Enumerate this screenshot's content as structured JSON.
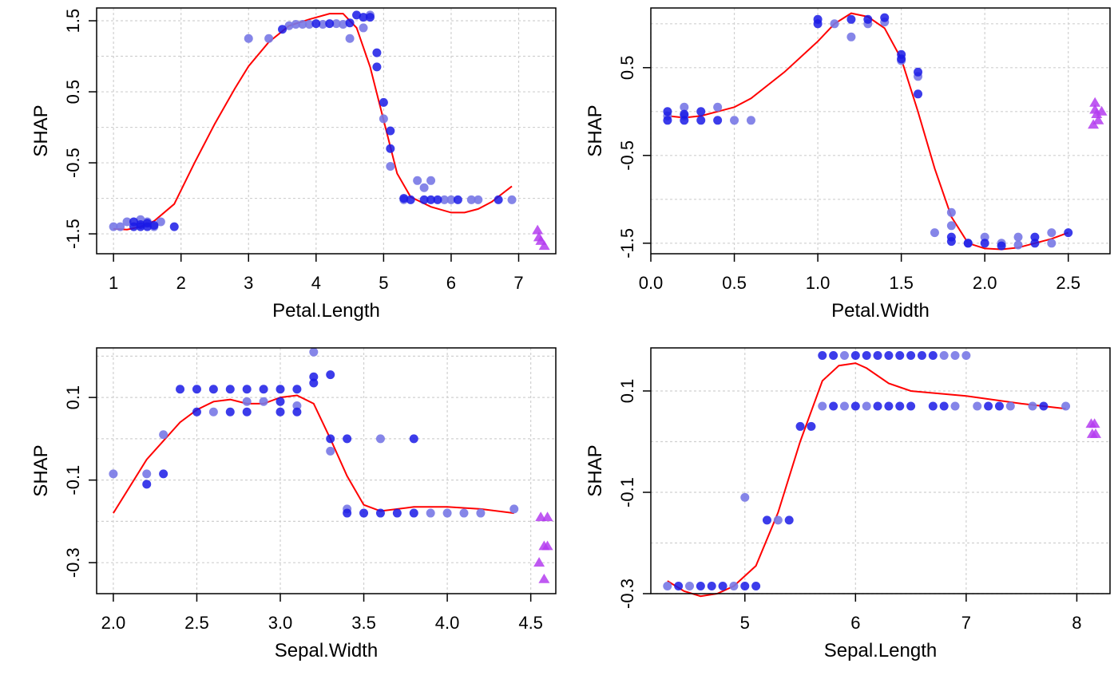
{
  "colors": {
    "point": "#1a1ae6",
    "point_light": "#7878e6",
    "triangle": "#b43cf0",
    "smooth": "#ff0000",
    "grid": "#d0d0d0",
    "frame": "#000000"
  },
  "chart_data": [
    {
      "type": "scatter",
      "xlabel": "Petal.Length",
      "ylabel": "SHAP",
      "xlim": [
        0.75,
        7.55
      ],
      "ylim": [
        -1.78,
        1.68
      ],
      "xticks": [
        1,
        2,
        3,
        4,
        5,
        6,
        7
      ],
      "xtick_labels": [
        "1",
        "2",
        "3",
        "4",
        "5",
        "6",
        "7"
      ],
      "yticks": [
        -1.5,
        -0.5,
        0.5,
        1.5
      ],
      "ytick_labels": [
        "-1.5",
        "-0.5",
        "0.5",
        "1.5"
      ],
      "grid": true,
      "points_dark": [
        [
          1.3,
          -1.33
        ],
        [
          1.4,
          -1.37
        ],
        [
          1.5,
          -1.35
        ],
        [
          1.4,
          -1.4
        ],
        [
          1.6,
          -1.38
        ],
        [
          1.5,
          -1.4
        ],
        [
          1.3,
          -1.4
        ],
        [
          1.9,
          -1.4
        ],
        [
          3.5,
          1.38
        ],
        [
          4.0,
          1.46
        ],
        [
          4.2,
          1.46
        ],
        [
          4.5,
          1.47
        ],
        [
          4.6,
          1.58
        ],
        [
          4.7,
          1.55
        ],
        [
          4.8,
          1.55
        ],
        [
          4.9,
          1.05
        ],
        [
          4.9,
          0.85
        ],
        [
          5.0,
          0.35
        ],
        [
          5.1,
          -0.05
        ],
        [
          5.1,
          -0.3
        ],
        [
          5.3,
          -1.0
        ],
        [
          5.4,
          -1.02
        ],
        [
          5.6,
          -1.02
        ],
        [
          5.7,
          -1.02
        ],
        [
          5.8,
          -1.02
        ],
        [
          6.1,
          -1.02
        ],
        [
          6.7,
          -1.02
        ]
      ],
      "points_light": [
        [
          1.0,
          -1.4
        ],
        [
          1.1,
          -1.4
        ],
        [
          1.2,
          -1.33
        ],
        [
          1.7,
          -1.33
        ],
        [
          1.6,
          -1.4
        ],
        [
          1.5,
          -1.33
        ],
        [
          1.4,
          -1.3
        ],
        [
          3.0,
          1.25
        ],
        [
          3.3,
          1.25
        ],
        [
          3.6,
          1.43
        ],
        [
          3.7,
          1.45
        ],
        [
          3.8,
          1.45
        ],
        [
          3.9,
          1.45
        ],
        [
          4.1,
          1.45
        ],
        [
          4.3,
          1.46
        ],
        [
          4.4,
          1.45
        ],
        [
          4.5,
          1.25
        ],
        [
          4.7,
          1.4
        ],
        [
          4.8,
          1.58
        ],
        [
          5.0,
          0.12
        ],
        [
          5.1,
          -0.55
        ],
        [
          5.3,
          -1.02
        ],
        [
          5.5,
          -0.75
        ],
        [
          5.6,
          -0.85
        ],
        [
          5.7,
          -0.75
        ],
        [
          5.9,
          -1.02
        ],
        [
          6.0,
          -1.02
        ],
        [
          6.3,
          -1.02
        ],
        [
          6.4,
          -1.02
        ],
        [
          6.9,
          -1.02
        ]
      ],
      "triangles": [
        [
          7.28,
          -1.45
        ],
        [
          7.3,
          -1.55
        ],
        [
          7.33,
          -1.6
        ],
        [
          7.38,
          -1.67
        ]
      ],
      "smooth": [
        [
          1.0,
          -1.43
        ],
        [
          1.2,
          -1.44
        ],
        [
          1.4,
          -1.4
        ],
        [
          1.6,
          -1.32
        ],
        [
          1.9,
          -1.08
        ],
        [
          2.2,
          -0.5
        ],
        [
          2.5,
          0.05
        ],
        [
          2.8,
          0.55
        ],
        [
          3.0,
          0.86
        ],
        [
          3.3,
          1.2
        ],
        [
          3.6,
          1.43
        ],
        [
          3.9,
          1.52
        ],
        [
          4.2,
          1.6
        ],
        [
          4.4,
          1.6
        ],
        [
          4.6,
          1.4
        ],
        [
          4.8,
          0.85
        ],
        [
          5.0,
          0.1
        ],
        [
          5.2,
          -0.65
        ],
        [
          5.4,
          -0.98
        ],
        [
          5.7,
          -1.12
        ],
        [
          6.0,
          -1.2
        ],
        [
          6.2,
          -1.2
        ],
        [
          6.4,
          -1.15
        ],
        [
          6.6,
          -1.05
        ],
        [
          6.9,
          -0.83
        ]
      ]
    },
    {
      "type": "scatter",
      "xlabel": "Petal.Width",
      "ylabel": "SHAP",
      "xlim": [
        0.0,
        2.75
      ],
      "ylim": [
        -1.62,
        1.18
      ],
      "xticks": [
        0.0,
        0.5,
        1.0,
        1.5,
        2.0,
        2.5
      ],
      "xtick_labels": [
        "0.0",
        "0.5",
        "1.0",
        "1.5",
        "2.0",
        "2.5"
      ],
      "yticks": [
        -1.5,
        -0.5,
        0.5
      ],
      "ytick_labels": [
        "-1.5",
        "-0.5",
        "0.5"
      ],
      "grid": true,
      "points_dark": [
        [
          0.1,
          0.0
        ],
        [
          0.1,
          -0.1
        ],
        [
          0.2,
          -0.1
        ],
        [
          0.2,
          -0.03
        ],
        [
          0.3,
          -0.1
        ],
        [
          0.4,
          -0.1
        ],
        [
          0.3,
          0.0
        ],
        [
          1.0,
          1.05
        ],
        [
          1.0,
          1.0
        ],
        [
          1.2,
          1.05
        ],
        [
          1.3,
          1.05
        ],
        [
          1.4,
          1.07
        ],
        [
          1.5,
          0.65
        ],
        [
          1.5,
          0.6
        ],
        [
          1.6,
          0.45
        ],
        [
          1.6,
          0.2
        ],
        [
          1.8,
          -1.43
        ],
        [
          1.8,
          -1.48
        ],
        [
          1.9,
          -1.5
        ],
        [
          2.0,
          -1.5
        ],
        [
          2.1,
          -1.53
        ],
        [
          2.3,
          -1.5
        ],
        [
          2.3,
          -1.43
        ],
        [
          2.5,
          -1.38
        ]
      ],
      "points_light": [
        [
          0.1,
          -0.05
        ],
        [
          0.2,
          0.05
        ],
        [
          0.2,
          -0.05
        ],
        [
          0.4,
          0.05
        ],
        [
          0.5,
          -0.1
        ],
        [
          0.6,
          -0.1
        ],
        [
          1.1,
          1.0
        ],
        [
          1.2,
          0.85
        ],
        [
          1.3,
          1.0
        ],
        [
          1.4,
          1.02
        ],
        [
          1.5,
          0.58
        ],
        [
          1.6,
          0.4
        ],
        [
          1.7,
          -1.38
        ],
        [
          1.8,
          -1.3
        ],
        [
          1.8,
          -1.15
        ],
        [
          1.9,
          -1.5
        ],
        [
          2.0,
          -1.43
        ],
        [
          2.1,
          -1.5
        ],
        [
          2.2,
          -1.43
        ],
        [
          2.2,
          -1.52
        ],
        [
          2.4,
          -1.38
        ],
        [
          2.4,
          -1.5
        ]
      ],
      "triangles": [
        [
          2.66,
          0.1
        ],
        [
          2.66,
          0.02
        ],
        [
          2.67,
          -0.03
        ],
        [
          2.68,
          -0.1
        ],
        [
          2.7,
          0.0
        ],
        [
          2.65,
          -0.15
        ]
      ],
      "smooth": [
        [
          0.1,
          -0.05
        ],
        [
          0.2,
          -0.07
        ],
        [
          0.3,
          -0.05
        ],
        [
          0.4,
          0.0
        ],
        [
          0.5,
          0.05
        ],
        [
          0.6,
          0.15
        ],
        [
          0.8,
          0.45
        ],
        [
          1.0,
          0.8
        ],
        [
          1.1,
          1.0
        ],
        [
          1.2,
          1.12
        ],
        [
          1.3,
          1.08
        ],
        [
          1.4,
          0.95
        ],
        [
          1.5,
          0.6
        ],
        [
          1.6,
          0.0
        ],
        [
          1.7,
          -0.65
        ],
        [
          1.8,
          -1.2
        ],
        [
          1.9,
          -1.5
        ],
        [
          2.0,
          -1.56
        ],
        [
          2.1,
          -1.57
        ],
        [
          2.2,
          -1.55
        ],
        [
          2.3,
          -1.5
        ],
        [
          2.4,
          -1.45
        ],
        [
          2.5,
          -1.38
        ]
      ]
    },
    {
      "type": "scatter",
      "xlabel": "Sepal.Width",
      "ylabel": "SHAP",
      "xlim": [
        1.9,
        4.65
      ],
      "ylim": [
        -0.375,
        0.22
      ],
      "xticks": [
        2.0,
        2.5,
        3.0,
        3.5,
        4.0,
        4.5
      ],
      "xtick_labels": [
        "2.0",
        "2.5",
        "3.0",
        "3.5",
        "4.0",
        "4.5"
      ],
      "yticks": [
        -0.3,
        -0.1,
        0.1
      ],
      "ytick_labels": [
        "-0.3",
        "-0.1",
        "0.1"
      ],
      "grid": true,
      "points_dark": [
        [
          2.2,
          -0.11
        ],
        [
          2.3,
          -0.085
        ],
        [
          2.4,
          0.12
        ],
        [
          2.5,
          0.12
        ],
        [
          2.6,
          0.12
        ],
        [
          2.7,
          0.12
        ],
        [
          2.8,
          0.12
        ],
        [
          2.9,
          0.12
        ],
        [
          3.0,
          0.12
        ],
        [
          3.1,
          0.12
        ],
        [
          2.5,
          0.065
        ],
        [
          2.7,
          0.065
        ],
        [
          2.8,
          0.065
        ],
        [
          3.0,
          0.065
        ],
        [
          3.1,
          0.065
        ],
        [
          3.0,
          0.09
        ],
        [
          3.2,
          0.15
        ],
        [
          3.2,
          0.135
        ],
        [
          3.3,
          0.155
        ],
        [
          3.3,
          0.0
        ],
        [
          3.4,
          0.0
        ],
        [
          3.4,
          -0.18
        ],
        [
          3.5,
          -0.18
        ],
        [
          3.6,
          -0.18
        ],
        [
          3.7,
          -0.18
        ],
        [
          3.8,
          -0.18
        ],
        [
          3.8,
          0.0
        ]
      ],
      "points_light": [
        [
          2.0,
          -0.085
        ],
        [
          2.2,
          -0.085
        ],
        [
          2.3,
          0.01
        ],
        [
          2.6,
          0.065
        ],
        [
          2.8,
          0.09
        ],
        [
          2.9,
          0.09
        ],
        [
          3.1,
          0.08
        ],
        [
          3.2,
          0.21
        ],
        [
          3.3,
          -0.03
        ],
        [
          3.4,
          -0.17
        ],
        [
          3.6,
          0.0
        ],
        [
          3.9,
          -0.18
        ],
        [
          4.0,
          -0.18
        ],
        [
          4.1,
          -0.18
        ],
        [
          4.2,
          -0.18
        ],
        [
          4.4,
          -0.17
        ]
      ],
      "triangles": [
        [
          4.56,
          -0.19
        ],
        [
          4.6,
          -0.19
        ],
        [
          4.58,
          -0.26
        ],
        [
          4.6,
          -0.26
        ],
        [
          4.55,
          -0.3
        ],
        [
          4.58,
          -0.34
        ]
      ],
      "smooth": [
        [
          2.0,
          -0.18
        ],
        [
          2.2,
          -0.05
        ],
        [
          2.4,
          0.04
        ],
        [
          2.5,
          0.07
        ],
        [
          2.6,
          0.09
        ],
        [
          2.7,
          0.095
        ],
        [
          2.8,
          0.085
        ],
        [
          2.9,
          0.085
        ],
        [
          3.0,
          0.1
        ],
        [
          3.1,
          0.105
        ],
        [
          3.2,
          0.085
        ],
        [
          3.3,
          0.0
        ],
        [
          3.4,
          -0.09
        ],
        [
          3.5,
          -0.16
        ],
        [
          3.6,
          -0.175
        ],
        [
          3.8,
          -0.165
        ],
        [
          4.0,
          -0.165
        ],
        [
          4.2,
          -0.17
        ],
        [
          4.4,
          -0.18
        ]
      ]
    },
    {
      "type": "scatter",
      "xlabel": "Sepal.Length",
      "ylabel": "SHAP",
      "xlim": [
        4.15,
        8.3
      ],
      "ylim": [
        -0.3,
        0.185
      ],
      "xticks": [
        5,
        6,
        7,
        8
      ],
      "xtick_labels": [
        "5",
        "6",
        "7",
        "8"
      ],
      "yticks": [
        -0.3,
        -0.1,
        0.1
      ],
      "ytick_labels": [
        "-0.3",
        "-0.1",
        "0.1"
      ],
      "grid": true,
      "points_dark": [
        [
          4.4,
          -0.285
        ],
        [
          4.6,
          -0.285
        ],
        [
          4.7,
          -0.285
        ],
        [
          4.8,
          -0.285
        ],
        [
          5.0,
          -0.285
        ],
        [
          5.1,
          -0.285
        ],
        [
          5.2,
          -0.155
        ],
        [
          5.4,
          -0.155
        ],
        [
          5.5,
          0.03
        ],
        [
          5.6,
          0.03
        ],
        [
          5.7,
          0.17
        ],
        [
          5.8,
          0.17
        ],
        [
          6.0,
          0.17
        ],
        [
          6.1,
          0.17
        ],
        [
          6.2,
          0.17
        ],
        [
          6.3,
          0.17
        ],
        [
          6.4,
          0.17
        ],
        [
          6.5,
          0.17
        ],
        [
          6.6,
          0.17
        ],
        [
          6.7,
          0.17
        ],
        [
          5.8,
          0.07
        ],
        [
          6.0,
          0.07
        ],
        [
          6.2,
          0.07
        ],
        [
          6.3,
          0.07
        ],
        [
          6.4,
          0.07
        ],
        [
          6.5,
          0.07
        ],
        [
          6.7,
          0.07
        ],
        [
          6.8,
          0.07
        ],
        [
          7.2,
          0.07
        ],
        [
          7.3,
          0.07
        ],
        [
          7.7,
          0.07
        ]
      ],
      "points_light": [
        [
          4.3,
          -0.285
        ],
        [
          4.5,
          -0.285
        ],
        [
          4.9,
          -0.285
        ],
        [
          5.0,
          -0.11
        ],
        [
          5.3,
          -0.155
        ],
        [
          5.9,
          0.17
        ],
        [
          6.8,
          0.17
        ],
        [
          6.9,
          0.17
        ],
        [
          7.0,
          0.17
        ],
        [
          5.7,
          0.07
        ],
        [
          5.9,
          0.07
        ],
        [
          6.1,
          0.07
        ],
        [
          6.9,
          0.07
        ],
        [
          7.1,
          0.07
        ],
        [
          7.4,
          0.07
        ],
        [
          7.6,
          0.07
        ],
        [
          7.9,
          0.07
        ]
      ],
      "triangles": [
        [
          8.13,
          0.035
        ],
        [
          8.16,
          0.035
        ],
        [
          8.14,
          0.015
        ],
        [
          8.17,
          0.015
        ]
      ],
      "smooth": [
        [
          4.3,
          -0.275
        ],
        [
          4.45,
          -0.295
        ],
        [
          4.6,
          -0.305
        ],
        [
          4.75,
          -0.3
        ],
        [
          4.9,
          -0.285
        ],
        [
          5.1,
          -0.245
        ],
        [
          5.3,
          -0.14
        ],
        [
          5.5,
          0.0
        ],
        [
          5.7,
          0.12
        ],
        [
          5.85,
          0.15
        ],
        [
          6.0,
          0.155
        ],
        [
          6.1,
          0.145
        ],
        [
          6.3,
          0.115
        ],
        [
          6.5,
          0.1
        ],
        [
          7.0,
          0.09
        ],
        [
          7.5,
          0.075
        ],
        [
          7.9,
          0.065
        ]
      ]
    }
  ]
}
